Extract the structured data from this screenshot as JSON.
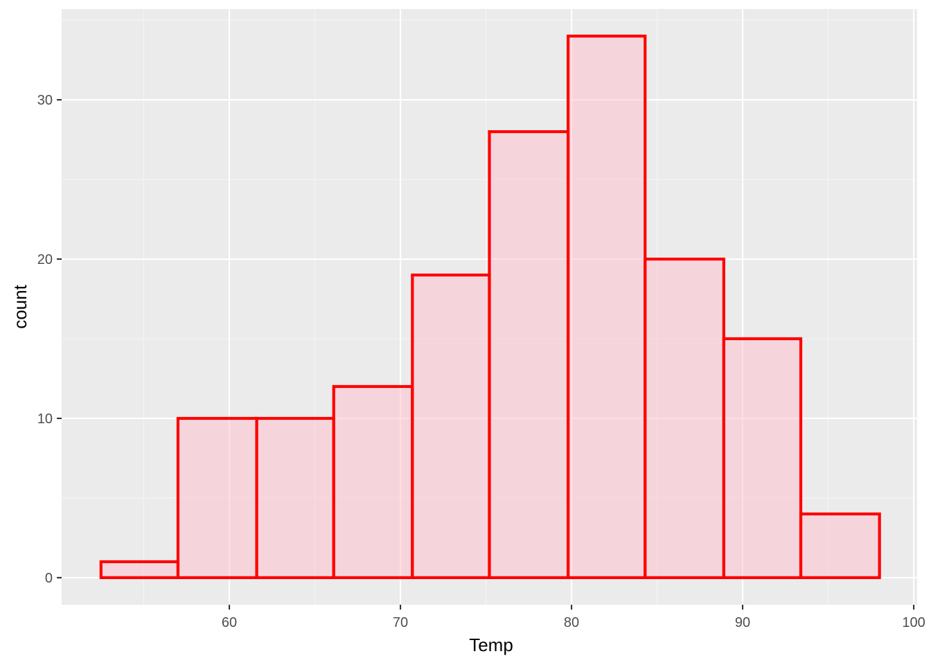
{
  "chart_data": {
    "type": "bar",
    "subtype": "histogram",
    "title": "",
    "xlabel": "Temp",
    "ylabel": "count",
    "bins": [
      {
        "x_min": 52.5,
        "x_max": 57.0,
        "count": 1
      },
      {
        "x_min": 57.0,
        "x_max": 61.6,
        "count": 10
      },
      {
        "x_min": 61.6,
        "x_max": 66.1,
        "count": 10
      },
      {
        "x_min": 66.1,
        "x_max": 70.7,
        "count": 12
      },
      {
        "x_min": 70.7,
        "x_max": 75.2,
        "count": 19
      },
      {
        "x_min": 75.2,
        "x_max": 79.8,
        "count": 28
      },
      {
        "x_min": 79.8,
        "x_max": 84.3,
        "count": 34
      },
      {
        "x_min": 84.3,
        "x_max": 88.9,
        "count": 20
      },
      {
        "x_min": 88.9,
        "x_max": 93.4,
        "count": 15
      },
      {
        "x_min": 93.4,
        "x_max": 98.0,
        "count": 4
      }
    ],
    "xlim": [
      50.2,
      100.2
    ],
    "ylim": [
      -1.7,
      35.7
    ],
    "x_ticks": [
      60,
      70,
      80,
      90,
      100
    ],
    "x_tick_labels": [
      "60",
      "70",
      "80",
      "90",
      "100"
    ],
    "y_ticks": [
      0,
      10,
      20,
      30
    ],
    "y_tick_labels": [
      "0",
      "10",
      "20",
      "30"
    ],
    "grid": true,
    "legend": "none",
    "colors": {
      "panel_background": "#EBEBEB",
      "grid_major": "#FFFFFF",
      "grid_minor": "#F5F5F5",
      "bar_outline": "#FF0000",
      "bar_fill": "#FFC0CB",
      "bar_fill_opacity": 0.5,
      "tick_label": "#4D4D4D",
      "tick_mark": "#333333",
      "axis_title": "#000000"
    }
  }
}
